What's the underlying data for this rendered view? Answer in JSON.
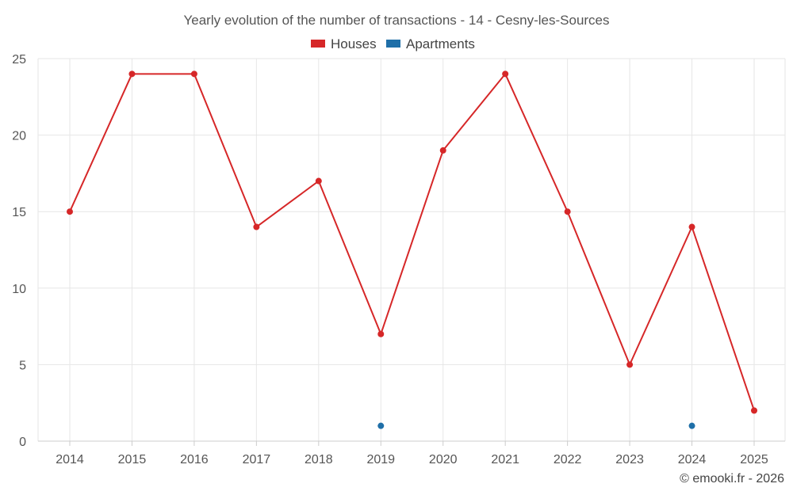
{
  "chart_data": {
    "type": "line",
    "title": "Yearly evolution of the number of transactions - 14 - Cesny-les-Sources",
    "categories": [
      "2014",
      "2015",
      "2016",
      "2017",
      "2018",
      "2019",
      "2020",
      "2021",
      "2022",
      "2023",
      "2024",
      "2025"
    ],
    "ylim": [
      0,
      25
    ],
    "yticks": [
      0,
      5,
      10,
      15,
      20,
      25
    ],
    "grid": true,
    "legend_position": "top-center",
    "series": [
      {
        "name": "Houses",
        "color": "#d62728",
        "values": [
          15,
          24,
          24,
          14,
          17,
          7,
          19,
          24,
          15,
          5,
          14,
          2
        ],
        "line": true
      },
      {
        "name": "Apartments",
        "color": "#1f6fa8",
        "values": [
          null,
          null,
          null,
          null,
          null,
          1,
          null,
          null,
          null,
          null,
          1,
          null
        ],
        "line": false
      }
    ]
  },
  "credit": "© emooki.fr - 2026"
}
